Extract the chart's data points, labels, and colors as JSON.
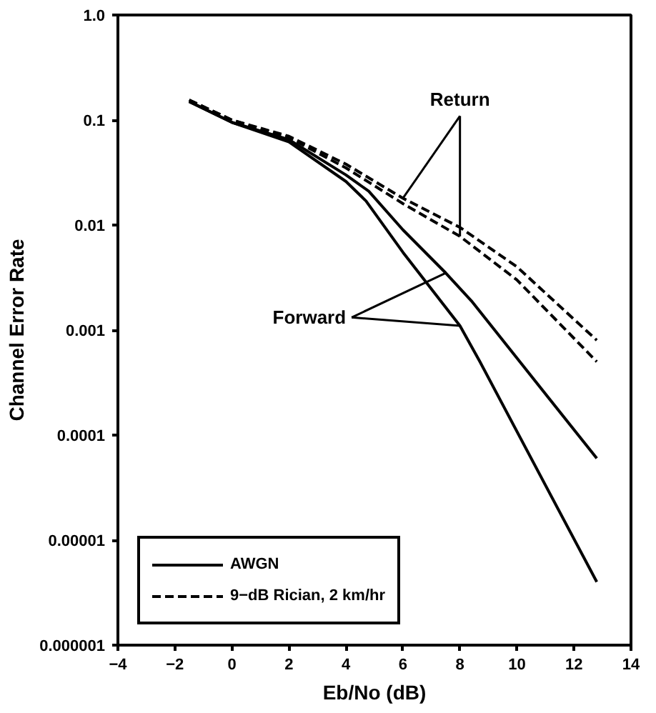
{
  "chart_data": {
    "type": "line",
    "xlabel": "Eb/No (dB)",
    "ylabel": "Channel Error Rate",
    "log": "y",
    "grid": false,
    "legend": "bottom left",
    "xlim": [
      -4,
      14
    ],
    "xticks": [
      {
        "value": -4,
        "label": "−4"
      },
      {
        "value": -2,
        "label": "−2"
      },
      0,
      2,
      4,
      6,
      8,
      10,
      12,
      14
    ],
    "ylim": [
      1e-06,
      1
    ],
    "yticks": [
      {
        "value": 1,
        "label": "1.0"
      },
      0.1,
      0.01,
      0.001,
      0.0001,
      {
        "value": 1e-05,
        "label": "0.00001"
      },
      {
        "value": 1e-06,
        "label": "0.000001"
      }
    ],
    "series": [
      {
        "name": "AWGN",
        "color": "#000000",
        "line_style": "solid",
        "x": [
          -1.5,
          0,
          2,
          4,
          4.7,
          6,
          8,
          8.7,
          12.8
        ],
        "values": [
          0.15,
          0.095,
          0.062,
          0.026,
          0.017,
          0.0055,
          0.0011,
          0.0005,
          4e-06
        ]
      },
      {
        "color": "#000000",
        "line_style": "solid",
        "x": [
          -1.5,
          0,
          2,
          4,
          4.8,
          6,
          7.5,
          8.4,
          12.8
        ],
        "values": [
          0.15,
          0.095,
          0.065,
          0.03,
          0.021,
          0.009,
          0.0035,
          0.0019,
          6e-05
        ]
      },
      {
        "name": "9−dB Rician, 2 km/hr",
        "color": "#000000",
        "line_style": "dashed",
        "x": [
          -1.5,
          0,
          2,
          4,
          6,
          8,
          10,
          12.8
        ],
        "values": [
          0.155,
          0.1,
          0.07,
          0.038,
          0.018,
          0.0095,
          0.004,
          0.0008
        ]
      },
      {
        "color": "#000000",
        "line_style": "dashed",
        "x": [
          -1.5,
          0,
          2,
          4,
          6,
          8,
          10,
          12.8
        ],
        "values": [
          0.155,
          0.1,
          0.068,
          0.035,
          0.016,
          0.0078,
          0.003,
          0.0005
        ]
      }
    ],
    "annotations": [
      {
        "text": "Return",
        "x": 8,
        "y": 0.0078
      },
      {
        "text": "Forward",
        "x": 8,
        "y": 0.0011
      }
    ]
  }
}
